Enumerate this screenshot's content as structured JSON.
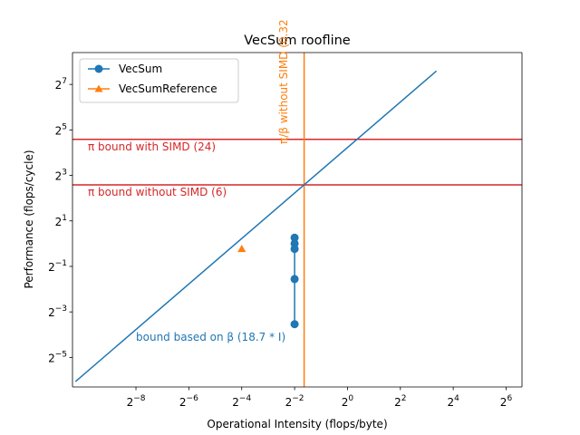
{
  "chart_data": {
    "type": "line",
    "title": "VecSum roofline",
    "xlabel": "Operational Intensity (flops/byte)",
    "ylabel": "Performance (flops/cycle)",
    "xscale": "log2",
    "yscale": "log2",
    "xlim_log2": [
      -10.4,
      6.6
    ],
    "ylim_log2": [
      -6.3,
      8.4
    ],
    "x_ticks_log2": [
      -8,
      -6,
      -4,
      -2,
      0,
      2,
      4,
      6
    ],
    "y_ticks_log2": [
      -5,
      -3,
      -1,
      1,
      3,
      5,
      7
    ],
    "legend_position": "top-left",
    "colors": {
      "blue": "#1f77b4",
      "orange": "#ff7f0e",
      "red": "#d62728"
    },
    "series": [
      {
        "name": "VecSum",
        "marker": "circle",
        "color": "#1f77b4",
        "x": [
          0.25,
          0.25,
          0.25,
          0.25,
          0.25
        ],
        "y": [
          1.2,
          1.0,
          0.85,
          0.34,
          0.086
        ]
      },
      {
        "name": "VecSumReference",
        "marker": "triangle",
        "color": "#ff7f0e",
        "x": [
          0.0625
        ],
        "y": [
          0.85
        ]
      }
    ],
    "bounds": [
      {
        "kind": "horizontal",
        "value": 24,
        "color": "#d62728",
        "label": "π bound with SIMD (24)"
      },
      {
        "kind": "horizontal",
        "value": 6,
        "color": "#d62728",
        "label": "π bound without SIMD (6)"
      },
      {
        "kind": "vertical",
        "value": 0.3209,
        "color": "#ff7f0e",
        "label": "π/β without SIMD (0.32"
      },
      {
        "kind": "diagonal",
        "slope": 18.7,
        "x_range": [
          0.0008,
          10.3
        ],
        "color": "#1f77b4",
        "label": "bound based on β (18.7 * I)"
      }
    ]
  }
}
